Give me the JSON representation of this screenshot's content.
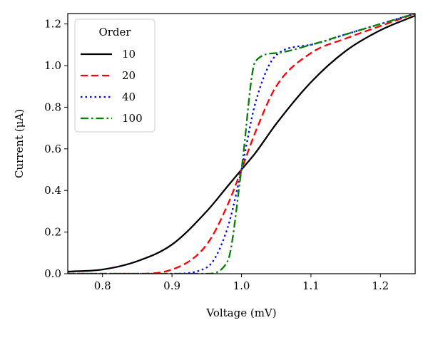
{
  "chart_data": {
    "type": "line",
    "title": "",
    "xlabel": "Voltage (mV)",
    "ylabel": "Current (μA)",
    "xlim": [
      0.75,
      1.25
    ],
    "ylim": [
      0.0,
      1.25
    ],
    "x_ticks": [
      0.8,
      0.9,
      1.0,
      1.1,
      1.2
    ],
    "x_tick_labels": [
      "0.8",
      "0.9",
      "1.0",
      "1.1",
      "1.2"
    ],
    "y_ticks": [
      0.0,
      0.2,
      0.4,
      0.6,
      0.8,
      1.0,
      1.2
    ],
    "y_tick_labels": [
      "0.0",
      "0.2",
      "0.4",
      "0.6",
      "0.8",
      "1.0",
      "1.2"
    ],
    "grid": false,
    "legend": {
      "title": "Order",
      "placement": "top-left"
    },
    "x": [
      0.75,
      0.8,
      0.85,
      0.9,
      0.95,
      0.98,
      1.0,
      1.02,
      1.05,
      1.1,
      1.15,
      1.2,
      1.25
    ],
    "series": [
      {
        "name": "10",
        "color": "#000000",
        "dash": "solid",
        "values": [
          0.01,
          0.02,
          0.06,
          0.14,
          0.3,
          0.42,
          0.5,
          0.58,
          0.72,
          0.92,
          1.07,
          1.17,
          1.24
        ]
      },
      {
        "name": "20",
        "color": "#ff0000",
        "dash": "dashed",
        "values": [
          0.0,
          0.0,
          0.0,
          0.02,
          0.14,
          0.33,
          0.5,
          0.68,
          0.9,
          1.06,
          1.13,
          1.19,
          1.25
        ]
      },
      {
        "name": "40",
        "color": "#0000ff",
        "dash": "dotted",
        "values": [
          0.0,
          0.0,
          0.0,
          0.0,
          0.03,
          0.22,
          0.5,
          0.82,
          1.05,
          1.1,
          1.15,
          1.2,
          1.25
        ]
      },
      {
        "name": "100",
        "color": "#008000",
        "dash": "dashdot",
        "values": [
          0.0,
          0.0,
          0.0,
          0.0,
          0.0,
          0.06,
          0.5,
          1.02,
          1.06,
          1.1,
          1.15,
          1.2,
          1.25
        ]
      }
    ]
  }
}
